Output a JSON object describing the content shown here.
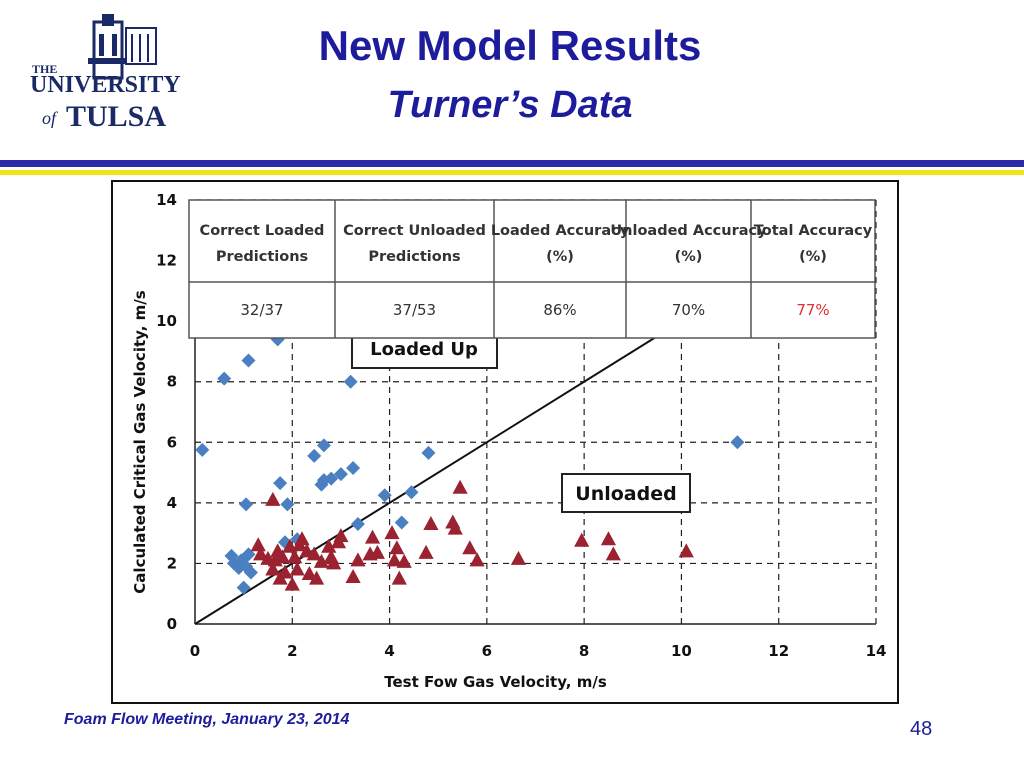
{
  "slide": {
    "title": "New Model Results",
    "subtitle": "Turner’s Data",
    "footer": "Foam Flow Meeting, January 23, 2014",
    "page_number": "48"
  },
  "logo": {
    "line1": "THE",
    "line2": "UNIVERSITY",
    "line3_of": "of",
    "line3": "TULSA"
  },
  "colors": {
    "title": "#1c1c9c",
    "rule_blue": "#2a2aa8",
    "rule_yellow": "#f3e21a",
    "loaded_marker": "#4a7fc1",
    "unloaded_marker": "#9b2230",
    "total_accuracy": "#e03030"
  },
  "table": {
    "headers": [
      "Correct Loaded Predictions",
      "Correct Unloaded Predictions",
      "Loaded Accuracy (%)",
      "Unloaded Accuracy (%)",
      "Total Accuracy (%)"
    ],
    "values": [
      "32/37",
      "37/53",
      "86%",
      "70%",
      "77%"
    ]
  },
  "chart_data": {
    "type": "scatter",
    "xlabel": "Test Fow Gas Velocity, m/s",
    "ylabel": "Calculated Critical Gas Velocity, m/s",
    "xlim": [
      0,
      14
    ],
    "ylim": [
      0,
      14
    ],
    "xticks": [
      "0",
      "2",
      "4",
      "6",
      "8",
      "10",
      "12",
      "14"
    ],
    "yticks": [
      "0",
      "2",
      "4",
      "6",
      "8",
      "10",
      "12",
      "14"
    ],
    "grid": true,
    "reference_line": {
      "x": [
        0,
        14
      ],
      "y": [
        0,
        14
      ]
    },
    "annotations": [
      "Loaded Up",
      "Unloaded"
    ],
    "series": [
      {
        "marker": "diamond",
        "color": "#4a7fc1",
        "points": [
          [
            0.15,
            5.75
          ],
          [
            0.6,
            8.1
          ],
          [
            1.1,
            8.7
          ],
          [
            1.7,
            9.4
          ],
          [
            3.2,
            8.0
          ],
          [
            0.75,
            2.25
          ],
          [
            0.8,
            2.0
          ],
          [
            0.9,
            1.85
          ],
          [
            0.95,
            2.1
          ],
          [
            1.0,
            1.2
          ],
          [
            1.05,
            1.9
          ],
          [
            1.1,
            2.3
          ],
          [
            1.15,
            1.7
          ],
          [
            1.05,
            3.95
          ],
          [
            1.75,
            4.65
          ],
          [
            1.9,
            3.95
          ],
          [
            1.85,
            2.7
          ],
          [
            2.1,
            2.8
          ],
          [
            2.45,
            5.55
          ],
          [
            2.6,
            4.6
          ],
          [
            2.65,
            4.75
          ],
          [
            2.65,
            5.9
          ],
          [
            2.8,
            4.8
          ],
          [
            3.0,
            4.95
          ],
          [
            3.25,
            5.15
          ],
          [
            3.35,
            3.3
          ],
          [
            3.9,
            4.25
          ],
          [
            4.25,
            3.35
          ],
          [
            4.45,
            4.35
          ],
          [
            4.8,
            5.65
          ],
          [
            11.15,
            6.0
          ]
        ]
      },
      {
        "marker": "triangle",
        "color": "#9b2230",
        "points": [
          [
            1.3,
            2.6
          ],
          [
            1.35,
            2.3
          ],
          [
            1.5,
            2.15
          ],
          [
            1.6,
            4.1
          ],
          [
            1.6,
            1.8
          ],
          [
            1.65,
            2.1
          ],
          [
            1.7,
            2.4
          ],
          [
            1.75,
            1.5
          ],
          [
            1.8,
            2.2
          ],
          [
            1.85,
            1.7
          ],
          [
            1.95,
            2.55
          ],
          [
            2.0,
            1.3
          ],
          [
            2.05,
            2.2
          ],
          [
            2.1,
            1.8
          ],
          [
            2.15,
            2.6
          ],
          [
            2.2,
            2.8
          ],
          [
            2.3,
            2.4
          ],
          [
            2.35,
            1.65
          ],
          [
            2.45,
            2.3
          ],
          [
            2.5,
            1.5
          ],
          [
            2.6,
            2.05
          ],
          [
            2.75,
            2.55
          ],
          [
            2.8,
            2.2
          ],
          [
            2.85,
            2.0
          ],
          [
            2.95,
            2.7
          ],
          [
            3.0,
            2.9
          ],
          [
            3.25,
            1.55
          ],
          [
            3.35,
            2.1
          ],
          [
            3.6,
            2.3
          ],
          [
            3.65,
            2.85
          ],
          [
            3.75,
            2.35
          ],
          [
            4.05,
            3.0
          ],
          [
            4.1,
            2.1
          ],
          [
            4.15,
            2.5
          ],
          [
            4.2,
            1.5
          ],
          [
            4.3,
            2.05
          ],
          [
            4.75,
            2.35
          ],
          [
            4.85,
            3.3
          ],
          [
            5.3,
            3.35
          ],
          [
            5.35,
            3.15
          ],
          [
            5.45,
            4.5
          ],
          [
            5.65,
            2.5
          ],
          [
            5.8,
            2.1
          ],
          [
            6.65,
            2.15
          ],
          [
            7.95,
            2.75
          ],
          [
            8.5,
            2.8
          ],
          [
            8.6,
            2.3
          ],
          [
            10.1,
            2.4
          ]
        ]
      }
    ]
  }
}
